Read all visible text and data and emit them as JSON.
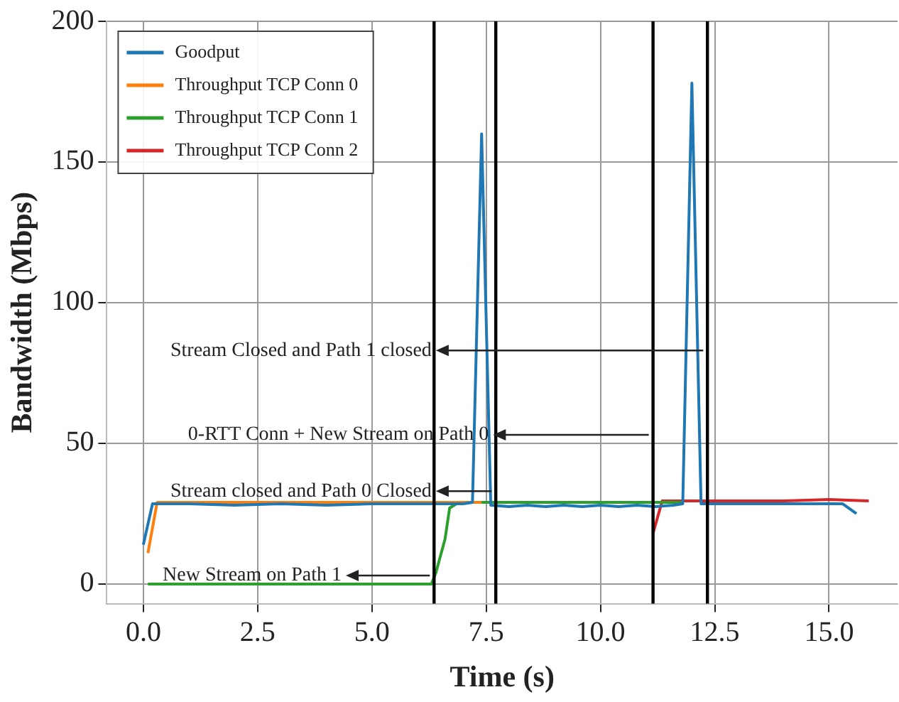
{
  "chart_data": {
    "type": "line",
    "xlabel": "Time (s)",
    "ylabel": "Bandwidth (Mbps)",
    "xlim": [
      -0.8,
      16.5
    ],
    "xticks": [
      {
        "value": 0,
        "label": "0.0"
      },
      {
        "value": 2.5,
        "label": "2.5"
      },
      {
        "value": 5,
        "label": "5.0"
      },
      {
        "value": 7.5,
        "label": "7.5"
      },
      {
        "value": 10,
        "label": "10.0"
      },
      {
        "value": 12.5,
        "label": "12.5"
      },
      {
        "value": 15,
        "label": "15.0"
      }
    ],
    "ylim": [
      -7,
      200
    ],
    "yticks": [
      0,
      50,
      100,
      150,
      200
    ],
    "grid": true,
    "legend": "top left",
    "line_style": "solid",
    "marker": "none",
    "series": [
      {
        "name": "Goodput",
        "color": "#1f77b4",
        "x": [
          0,
          0.2,
          1,
          2,
          3,
          4,
          5,
          6,
          7,
          7.2,
          7.4,
          7.6,
          8,
          8.4,
          8.8,
          9.2,
          9.6,
          10,
          10.4,
          10.8,
          11.2,
          11.6,
          11.8,
          12,
          12.2,
          12.6,
          13,
          14,
          15,
          15.3,
          15.6
        ],
        "values": [
          14,
          28.5,
          28.5,
          28,
          28.5,
          28,
          28.5,
          28.5,
          28.5,
          29,
          160,
          28,
          27.5,
          28,
          27.5,
          28,
          27.5,
          28,
          27.5,
          28,
          27.5,
          28,
          28.5,
          178,
          28.5,
          28.5,
          28.5,
          28.5,
          28.5,
          28.5,
          25
        ]
      },
      {
        "name": "Throughput TCP Conn 0",
        "color": "#ff7f0e",
        "x": [
          0.1,
          0.3,
          2,
          4,
          6,
          7.4
        ],
        "values": [
          11,
          29,
          29,
          29,
          29,
          29
        ]
      },
      {
        "name": "Throughput TCP Conn 1",
        "color": "#2ca02c",
        "x": [
          0.1,
          2,
          4,
          6.3,
          6.4,
          6.6,
          6.7,
          6.9,
          8,
          10,
          11.8
        ],
        "values": [
          0,
          0,
          0,
          0,
          4,
          16,
          27,
          29,
          29,
          29,
          29
        ]
      },
      {
        "name": "Throughput TCP Conn 2",
        "color": "#d62728",
        "x": [
          11.15,
          11.35,
          12,
          13,
          14,
          15,
          15.87
        ],
        "values": [
          18,
          29.5,
          29.5,
          29.5,
          29.5,
          30,
          29.5
        ]
      }
    ],
    "ref_lines": [
      {
        "axis": "x",
        "value": 6.36,
        "color": "#000000"
      },
      {
        "axis": "x",
        "value": 7.71,
        "color": "#000000"
      },
      {
        "axis": "x",
        "value": 11.15,
        "color": "#000000"
      },
      {
        "axis": "x",
        "value": 12.34,
        "color": "#000000"
      }
    ],
    "annotations": [
      {
        "text": "Stream Closed and Path 1 closed",
        "x": 6.4,
        "y": 83
      },
      {
        "text": "0-RTT Conn + New Stream on Path 0",
        "x": 7.65,
        "y": 53
      },
      {
        "text": "Stream closed and Path 0 Closed",
        "x": 6.4,
        "y": 33
      },
      {
        "text": "New Stream on Path 1",
        "x": 4.43,
        "y": 3
      }
    ]
  }
}
